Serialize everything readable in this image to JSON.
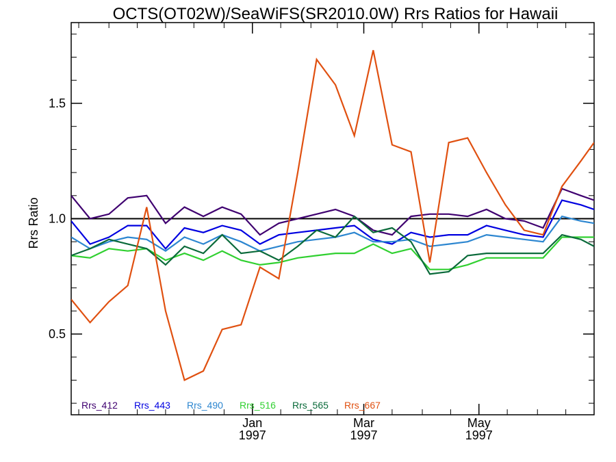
{
  "chart_data": {
    "type": "line",
    "title": "OCTS(OT02W)/SeaWiFS(SR2010.0W)  Rrs Ratios for Hawaii",
    "xlabel": "",
    "ylabel": "Rrs Ratio",
    "ylim": [
      0.15,
      1.85
    ],
    "yticks": [
      0.5,
      1.0,
      1.5
    ],
    "ytick_labels": [
      "0.5",
      "1.0",
      "1.5"
    ],
    "xlim": [
      -96,
      181
    ],
    "xticks": [
      0,
      59,
      120
    ],
    "xtick_labels": [
      [
        "Jan",
        "1997"
      ],
      [
        "Mar",
        "1997"
      ],
      [
        "May",
        "1997"
      ]
    ],
    "reference_line": 1.0,
    "x": [
      -96,
      -86,
      -76,
      -66,
      -56,
      -46,
      -36,
      -26,
      -16,
      -6,
      4,
      14,
      24,
      34,
      44,
      54,
      64,
      74,
      84,
      94,
      104,
      114,
      124,
      134,
      144,
      154,
      164,
      174,
      181
    ],
    "series": [
      {
        "name": "Rrs_412",
        "color": "#3f0070",
        "values": [
          1.1,
          1.0,
          1.02,
          1.09,
          1.1,
          0.98,
          1.05,
          1.01,
          1.05,
          1.02,
          0.93,
          0.98,
          1.0,
          1.02,
          1.04,
          1.01,
          0.95,
          0.93,
          1.01,
          1.02,
          1.02,
          1.01,
          1.04,
          1.0,
          0.99,
          0.96,
          1.13,
          1.1,
          1.08
        ]
      },
      {
        "name": "Rrs_443",
        "color": "#0000e0",
        "values": [
          0.99,
          0.89,
          0.92,
          0.97,
          0.97,
          0.87,
          0.96,
          0.94,
          0.97,
          0.95,
          0.89,
          0.93,
          0.94,
          0.95,
          0.96,
          0.97,
          0.91,
          0.89,
          0.94,
          0.92,
          0.93,
          0.93,
          0.97,
          0.95,
          0.93,
          0.92,
          1.08,
          1.06,
          1.04
        ]
      },
      {
        "name": "Rrs_490",
        "color": "#2c86d0",
        "values": [
          0.92,
          0.87,
          0.9,
          0.92,
          0.91,
          0.86,
          0.92,
          0.89,
          0.93,
          0.9,
          0.86,
          0.88,
          0.9,
          0.91,
          0.92,
          0.94,
          0.9,
          0.9,
          0.91,
          0.88,
          0.89,
          0.9,
          0.93,
          0.92,
          0.91,
          0.9,
          1.01,
          0.99,
          0.98
        ]
      },
      {
        "name": "Rrs_516",
        "color": "#30d030",
        "values": [
          0.84,
          0.83,
          0.87,
          0.86,
          0.87,
          0.82,
          0.85,
          0.82,
          0.86,
          0.82,
          0.8,
          0.81,
          0.83,
          0.84,
          0.85,
          0.85,
          0.89,
          0.85,
          0.87,
          0.78,
          0.78,
          0.8,
          0.83,
          0.83,
          0.83,
          0.83,
          0.92,
          0.92,
          0.92
        ]
      },
      {
        "name": "Rrs_565",
        "color": "#0a6a3a",
        "values": [
          0.84,
          0.87,
          0.91,
          0.89,
          0.87,
          0.8,
          0.88,
          0.85,
          0.93,
          0.85,
          0.86,
          0.82,
          0.88,
          0.95,
          0.92,
          1.01,
          0.94,
          0.96,
          0.9,
          0.76,
          0.77,
          0.84,
          0.85,
          0.85,
          0.85,
          0.85,
          0.93,
          0.91,
          0.88
        ]
      },
      {
        "name": "Rrs_667",
        "color": "#e05010",
        "values": [
          0.65,
          0.55,
          0.64,
          0.71,
          1.05,
          0.6,
          0.3,
          0.34,
          0.52,
          0.54,
          0.79,
          0.74,
          1.2,
          1.69,
          1.58,
          1.36,
          1.73,
          1.32,
          1.29,
          0.81,
          1.33,
          1.35,
          1.2,
          1.06,
          0.95,
          0.93,
          1.14,
          1.25,
          1.33
        ]
      }
    ]
  }
}
